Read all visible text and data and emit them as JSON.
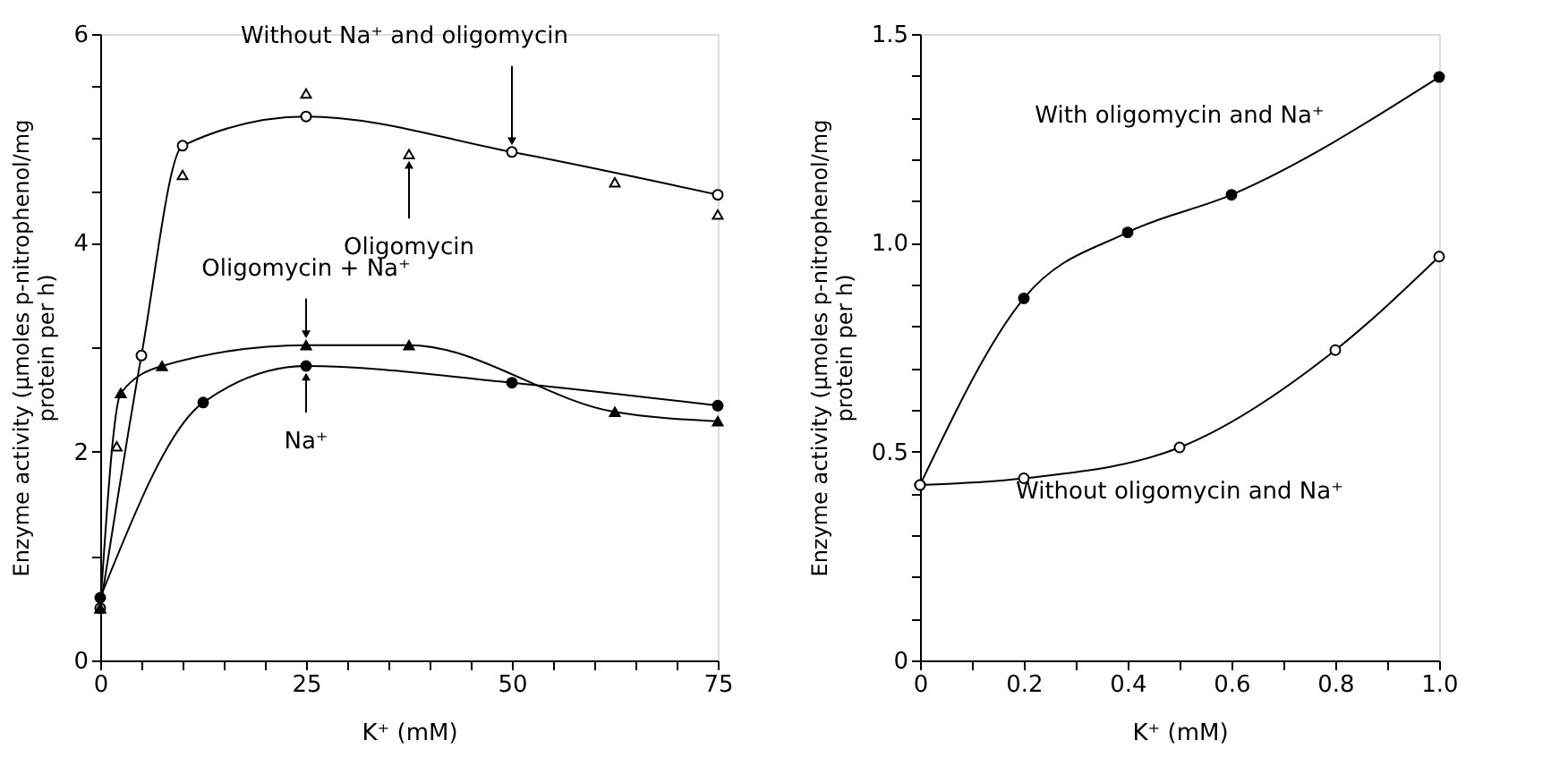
{
  "chart_data": [
    {
      "type": "line",
      "xlabel": "K⁺ (mM)",
      "ylabel": "Enzyme activity (μmoles p-nitrophenol/mg protein per h)",
      "xlim": [
        0,
        75
      ],
      "ylim": [
        0,
        6
      ],
      "xticks": [
        0,
        {
          "value": 5,
          "label": null
        },
        {
          "value": 10,
          "label": null
        },
        {
          "value": 15,
          "label": null
        },
        {
          "value": 20,
          "label": null
        },
        25,
        {
          "value": 30,
          "label": null
        },
        {
          "value": 35,
          "label": null
        },
        {
          "value": 40,
          "label": null
        },
        {
          "value": 45,
          "label": null
        },
        50,
        {
          "value": 55,
          "label": null
        },
        {
          "value": 60,
          "label": null
        },
        {
          "value": 65,
          "label": null
        },
        {
          "value": 70,
          "label": null
        },
        75
      ],
      "yticks": [
        0,
        {
          "value": 1,
          "label": null
        },
        2,
        {
          "value": 3,
          "label": null
        },
        4,
        {
          "value": 4.5,
          "label": null
        },
        {
          "value": 5,
          "label": null
        },
        {
          "value": 5.5,
          "label": null
        },
        6
      ],
      "grid": false,
      "legend": false,
      "series": [
        {
          "type": "line",
          "marker": "circle",
          "color": "#000000",
          "x": [
            0,
            5,
            10,
            25,
            50,
            75
          ],
          "values": [
            0.5,
            2.92,
            4.93,
            5.21,
            4.87,
            4.46
          ]
        },
        {
          "type": "scatter",
          "marker": "triangle",
          "color": "#000000",
          "x": [
            0,
            2,
            10,
            25,
            37.5,
            62.5,
            75
          ],
          "values": [
            0.5,
            2.05,
            4.65,
            5.43,
            4.85,
            4.58,
            4.27
          ]
        },
        {
          "type": "line",
          "marker": "triangle",
          "color": "#000000",
          "x": [
            0,
            2.5,
            7.5,
            25,
            37.5,
            62.5,
            75
          ],
          "values": [
            0.5,
            2.56,
            2.82,
            3.02,
            3.02,
            2.38,
            2.29
          ]
        },
        {
          "type": "line",
          "marker": "circle",
          "color": "#000000",
          "x": [
            0,
            12.5,
            25,
            50,
            75
          ],
          "values": [
            0.6,
            2.47,
            2.82,
            2.66,
            2.44
          ]
        }
      ],
      "annotations": [
        {
          "text": "Without Na⁺ and oligomycin",
          "x": 50,
          "y": 4.87
        },
        {
          "text": "Oligomycin",
          "x": 37.5,
          "y": 4.85
        },
        {
          "text": "Oligomycin + Na⁺",
          "x": 25,
          "y": 3.02
        },
        {
          "text": "Na⁺",
          "x": 25,
          "y": 2.82
        }
      ]
    },
    {
      "type": "line",
      "xlabel": "K⁺ (mM)",
      "ylabel": "Enzyme activity (μmoles p-nitrophenol/mg protein per h)",
      "xlim": [
        0,
        1
      ],
      "ylim": [
        0,
        1.5
      ],
      "xticks": [
        0,
        {
          "value": 0.1,
          "label": null
        },
        0.2,
        {
          "value": 0.3,
          "label": null
        },
        0.4,
        {
          "value": 0.5,
          "label": null
        },
        0.6,
        {
          "value": 0.7,
          "label": null
        },
        0.8,
        {
          "value": 0.9,
          "label": null
        },
        {
          "value": 1,
          "label": "1.0"
        }
      ],
      "yticks": [
        0,
        {
          "value": 0.1,
          "label": null
        },
        {
          "value": 0.2,
          "label": null
        },
        {
          "value": 0.3,
          "label": null
        },
        {
          "value": 0.4,
          "label": null
        },
        0.5,
        {
          "value": 0.6,
          "label": null
        },
        {
          "value": 0.7,
          "label": null
        },
        {
          "value": 0.8,
          "label": null
        },
        {
          "value": 0.9,
          "label": null
        },
        {
          "value": 1,
          "label": "1.0"
        },
        {
          "value": 1.1,
          "label": null
        },
        {
          "value": 1.2,
          "label": null
        },
        {
          "value": 1.3,
          "label": null
        },
        {
          "value": 1.4,
          "label": null
        },
        1.5
      ],
      "grid": false,
      "legend": false,
      "series": [
        {
          "type": "line",
          "marker": "circle",
          "color": "#000000",
          "x": [
            0,
            0.2,
            0.4,
            0.6,
            1.0
          ],
          "values": [
            0.42,
            0.867,
            1.025,
            1.115,
            1.397
          ]
        },
        {
          "type": "line",
          "marker": "circle",
          "color": "#000000",
          "x": [
            0,
            0.2,
            0.5,
            0.8,
            1.0
          ],
          "values": [
            0.42,
            0.436,
            0.51,
            0.743,
            0.967
          ]
        }
      ],
      "annotations": [
        "With oligomycin and Na⁺",
        "Without oligomycin and Na⁺"
      ]
    }
  ]
}
